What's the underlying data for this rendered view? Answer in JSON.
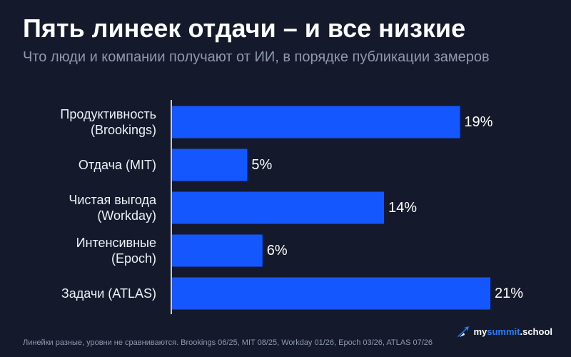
{
  "header": {
    "title": "Пять линеек отдачи – и все низкие",
    "subtitle": "Что люди и компании получают от ИИ, в порядке публикации замеров"
  },
  "footer": {
    "note": "Линейки разные, уровни не сравниваются. Brookings 06/25, MIT 08/25, Workday 01/26, Epoch 03/26, ATLAS 07/26",
    "brand_part1": "my",
    "brand_part2": "summit",
    "brand_part3": ".school",
    "brand_icon": "brand-arrow-icon"
  },
  "colors": {
    "background": "#141a2c",
    "bar": "#1557ff",
    "axis": "#c7ccd6",
    "text": "#ffffff",
    "muted": "#8f99ad",
    "brand_accent": "#2c7bf6"
  },
  "chart_data": {
    "type": "bar",
    "orientation": "horizontal",
    "categories": [
      [
        "Продуктивность",
        "(Brookings)"
      ],
      [
        "Отдача (MIT)"
      ],
      [
        "Чистая выгода",
        "(Workday)"
      ],
      [
        "Интенсивные",
        "(Epoch)"
      ],
      [
        "Задачи (ATLAS)"
      ]
    ],
    "values": [
      19,
      5,
      14,
      6,
      21
    ],
    "value_labels": [
      "19%",
      "5%",
      "14%",
      "6%",
      "21%"
    ],
    "unit": "%",
    "xlim": [
      0,
      21
    ],
    "grid": false,
    "legend": "none"
  }
}
